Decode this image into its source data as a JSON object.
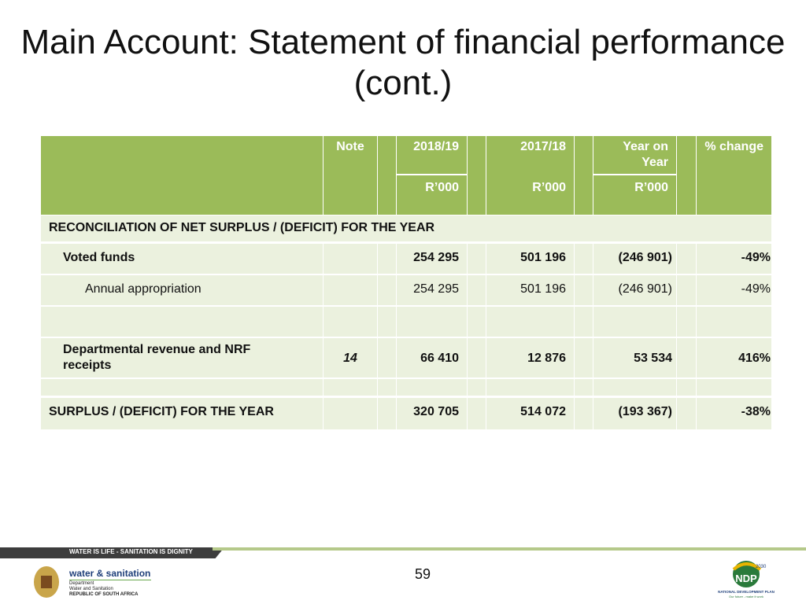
{
  "title": "Main Account: Statement of financial performance (cont.)",
  "table": {
    "header": {
      "note": "Note",
      "year1": "2018/19",
      "year2": "2017/18",
      "yoy": "Year on Year",
      "pct": "% change",
      "unit1": "R’000",
      "unit2": "R’000",
      "unit3": "R’000"
    },
    "section": "RECONCILIATION OF NET SURPLUS / (DEFICIT) FOR THE YEAR",
    "rows": [
      [
        "Voted funds",
        null,
        "254 295",
        "501 196",
        "(246 901)",
        "-49%"
      ],
      [
        "Annual appropriation",
        null,
        "254 295",
        "501 196",
        "(246 901)",
        "-49%"
      ],
      [
        null,
        null,
        null,
        null,
        null,
        null
      ],
      [
        "Departmental revenue and NRF receipts",
        "14",
        "66 410",
        "12 876",
        "53 534",
        "416%"
      ],
      [
        null,
        null,
        null,
        null,
        null,
        null
      ],
      [
        "SURPLUS / (DEFICIT) FOR THE YEAR",
        null,
        "320 705",
        "514 072",
        "(193 367)",
        "-38%"
      ]
    ]
  },
  "footer": {
    "banner": "WATER IS LIFE - SANITATION IS DIGNITY",
    "logo": "water & sanitation",
    "dept": [
      "Department",
      "Water and Sanitation",
      "REPUBLIC OF SOUTH AFRICA"
    ],
    "page": "59",
    "ndp": "NDP",
    "ndp_year": "2030",
    "ndp_name": "NATIONAL DEVELOPMENT PLAN",
    "ndp_motto": "Our future - make it work"
  }
}
